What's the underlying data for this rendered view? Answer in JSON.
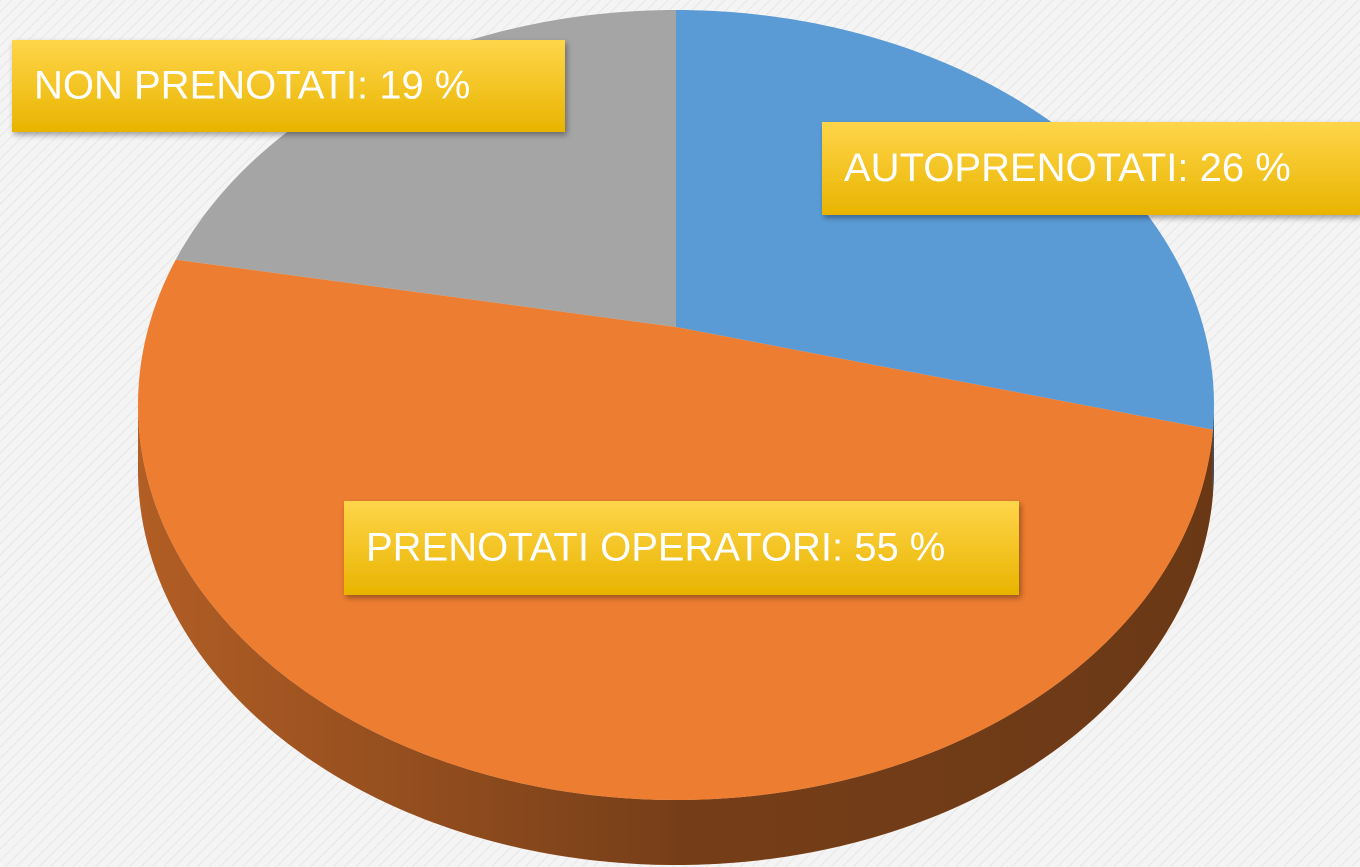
{
  "chart_data": {
    "type": "pie3d",
    "values": [
      26,
      55,
      19
    ],
    "value_labels": [
      "AUTOPRENOTATI: 26 %",
      "PRENOTATI OPERATORI: 55 %",
      "NON PRENOTATI: 19 %"
    ],
    "colors": [
      "#5b9bd5",
      "#ed7d31",
      "#a5a5a5"
    ]
  }
}
